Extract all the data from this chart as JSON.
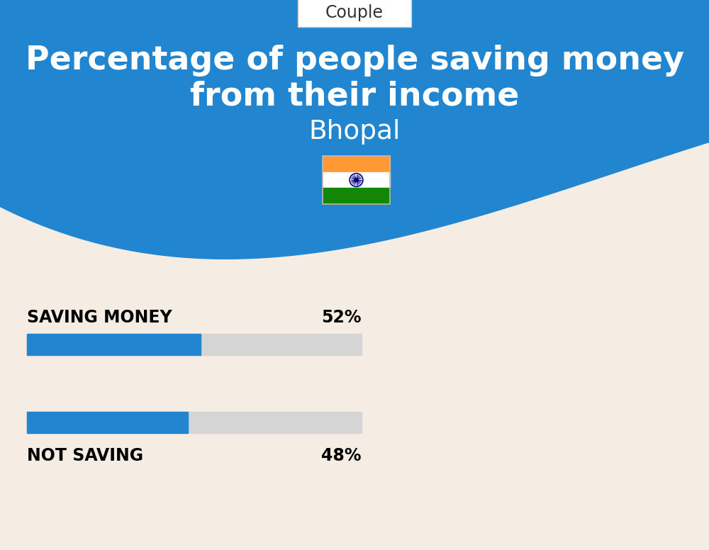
{
  "title_line1": "Percentage of people saving money",
  "title_line2": "from their income",
  "subtitle": "Bhopal",
  "category_label": "Couple",
  "bg_top_color": "#2185D0",
  "bg_bottom_color": "#F5EDE3",
  "bar_color": "#2185D0",
  "bar_bg_color": "#D5D5D5",
  "saving_label": "SAVING MONEY",
  "saving_value": 52,
  "saving_pct_label": "52%",
  "not_saving_label": "NOT SAVING",
  "not_saving_value": 48,
  "not_saving_pct_label": "48%",
  "title_color": "#FFFFFF",
  "subtitle_color": "#FFFFFF",
  "label_color": "#000000",
  "pct_color": "#000000",
  "couple_box_color": "#FFFFFF",
  "couple_text_color": "#333333",
  "flag_orange": "#FF9933",
  "flag_white": "#FFFFFF",
  "flag_green": "#138808",
  "chakra_blue": "#000080"
}
